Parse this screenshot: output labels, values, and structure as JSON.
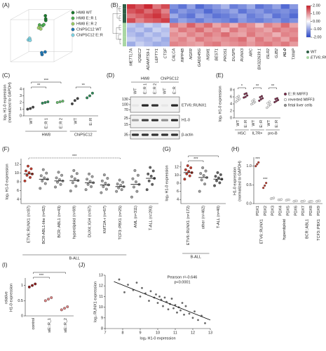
{
  "chart_data": [
    {
      "type": "scatter3d",
      "panel_label": "(A)",
      "xlim": [
        0,
        1
      ],
      "ylim": [
        0,
        1
      ],
      "zlim": [
        0,
        1
      ],
      "series": [
        {
          "name": "HW8 WT",
          "color": "#1b7a2e",
          "x": [
            0.55,
            0.6,
            0.58
          ],
          "y": [
            0.95,
            0.9,
            0.85
          ],
          "z": [
            0.6,
            0.5,
            0.55
          ]
        },
        {
          "name": "HW8 E::R 1",
          "color": "#4caf50",
          "x": [
            0.5,
            0.55,
            0.62
          ],
          "y": [
            0.78,
            0.75,
            0.8
          ],
          "z": [
            0.4,
            0.45,
            0.35
          ]
        },
        {
          "name": "HW8 E::R 2",
          "color": "#9ccc65",
          "x": [
            0.45,
            0.5,
            0.52
          ],
          "y": [
            0.7,
            0.72,
            0.68
          ],
          "z": [
            0.5,
            0.35,
            0.42
          ]
        },
        {
          "name": "ChiPSC12 WT",
          "color": "#1f77b4",
          "x": [
            0.6,
            0.65,
            0.55
          ],
          "y": [
            0.1,
            0.15,
            0.12
          ],
          "z": [
            0.3,
            0.35,
            0.4
          ]
        },
        {
          "name": "ChiPSC12 E::R",
          "color": "#7fd6e6",
          "x": [
            0.2,
            0.25,
            0.22
          ],
          "y": [
            0.4,
            0.45,
            0.38
          ],
          "z": [
            0.5,
            0.45,
            0.55
          ]
        }
      ]
    },
    {
      "type": "heatmap",
      "panel_label": "(B)",
      "columns": [
        "METTL7A",
        "IQSEC2",
        "ADAMTS9-1",
        "LEFTY1",
        "CTSF",
        "CALCA",
        "INPP4B",
        "NGFR",
        "GADD45G",
        "INSM1",
        "BEST1",
        "PROS1",
        "DUSP5",
        "RUNX3",
        "ARC",
        "BX322639.1",
        "ISLR2",
        "GJB2",
        "H1-0",
        "TXNIP"
      ],
      "zlim": [
        -2,
        2
      ],
      "zticks": [
        {
          "value": 2,
          "label": "2.00"
        },
        {
          "value": 1,
          "label": "1.00"
        },
        {
          "value": 0,
          "label": "0.00"
        },
        {
          "value": -1,
          "label": "-1.00"
        },
        {
          "value": -2,
          "label": "-2.00"
        }
      ],
      "groups": [
        {
          "name": "WT",
          "color": "#2f5f46",
          "values": [
            [
              1.8,
              1.5,
              1.9,
              1.2,
              1.6,
              -1.2,
              -1.5,
              -1.0,
              -1.6,
              -1.3,
              -1.1,
              -0.8,
              -1.4,
              -1.2,
              -0.9,
              -1.5,
              -1.3,
              -1.0,
              -1.6,
              -1.1
            ],
            [
              1.5,
              1.7,
              1.3,
              1.6,
              1.1,
              -1.4,
              -1.1,
              -1.3,
              -1.2,
              -1.6,
              -1.3,
              -1.2,
              -1.0,
              -1.5,
              -1.2,
              -1.1,
              -1.4,
              -1.3,
              -1.2,
              -1.4
            ],
            [
              1.2,
              1.4,
              1.6,
              1.8,
              1.4,
              -0.9,
              -1.3,
              -1.5,
              -1.0,
              -1.2,
              -1.5,
              -1.4,
              -1.2,
              -1.0,
              -1.4,
              -1.2,
              -1.0,
              -1.5,
              -1.3,
              -1.6
            ],
            [
              1.6,
              1.1,
              1.4,
              1.5,
              1.7,
              -1.3,
              -1.0,
              -1.2,
              -1.4,
              -1.1,
              -1.2,
              -1.3,
              -1.5,
              -1.1,
              -1.3,
              -1.4,
              -1.2,
              -1.1,
              -1.4,
              -1.2
            ]
          ]
        },
        {
          "name": "ETV6::RUNX1+",
          "color": "#a9d6a3",
          "values": [
            [
              -0.6,
              -0.8,
              -0.5,
              -0.7,
              -0.4,
              1.2,
              0.9,
              1.4,
              1.0,
              1.3,
              0.8,
              1.1,
              0.7,
              1.2,
              1.0,
              0.6,
              1.1,
              0.9,
              1.3,
              0.8
            ],
            [
              -0.8,
              -0.6,
              -0.9,
              -0.5,
              -0.7,
              0.8,
              1.2,
              1.0,
              1.3,
              0.9,
              1.1,
              0.7,
              1.2,
              0.9,
              1.1,
              1.0,
              0.8,
              1.2,
              1.0,
              1.1
            ],
            [
              -0.7,
              -0.9,
              -0.6,
              -0.8,
              -0.6,
              1.0,
              0.8,
              1.1,
              0.9,
              1.2,
              1.0,
              1.3,
              0.9,
              0.8,
              1.2,
              0.9,
              1.0,
              0.7,
              1.1,
              1.0
            ],
            [
              -0.5,
              -0.7,
              -0.8,
              -0.6,
              -0.9,
              0.9,
              1.1,
              0.8,
              1.2,
              1.0,
              0.9,
              1.0,
              1.1,
              1.3,
              0.8,
              1.2,
              0.9,
              1.1,
              0.8,
              1.2
            ],
            [
              -0.9,
              -0.5,
              -0.7,
              -0.9,
              -0.8,
              1.1,
              1.0,
              0.9,
              0.8,
              1.1,
              1.2,
              0.9,
              1.0,
              1.1,
              0.9,
              1.1,
              1.2,
              1.0,
              1.2,
              0.9
            ]
          ]
        }
      ]
    },
    {
      "type": "dot",
      "panel_label": "(C)",
      "ylabel": [
        "log₂ H1-0 expression",
        "(normalized to GAPDH)"
      ],
      "ylim": [
        0,
        4
      ],
      "yticks": [
        0,
        1,
        2,
        3,
        4
      ],
      "significance": [
        "***",
        "**",
        "**"
      ],
      "groups": [
        {
          "label": "HW8",
          "categories": [
            "WT",
            "E::R 1",
            "E::R 2"
          ],
          "colors": [
            "#444444",
            "#2e8b57",
            "#66bb6a"
          ],
          "values": [
            [
              1.0,
              1.1,
              1.3
            ],
            [
              1.9,
              2.0,
              2.1
            ],
            [
              2.0,
              2.1,
              2.2
            ]
          ]
        },
        {
          "label": "ChiPSC12",
          "categories": [
            "WT",
            "E::R"
          ],
          "colors": [
            "#444444",
            "#2e8b57"
          ],
          "values": [
            [
              1.8,
              2.3,
              2.6
            ],
            [
              2.7,
              3.0,
              3.4
            ]
          ]
        }
      ]
    },
    {
      "type": "dot",
      "panel_label": "(E)",
      "ylabel": "log₂ H1-0 expression",
      "ylim": [
        0,
        8
      ],
      "yticks": [
        0,
        2,
        4,
        6,
        8
      ],
      "significance": [
        "*",
        "**",
        "**"
      ],
      "legend": [
        {
          "name": "E::R MIFF3",
          "color": "#7b2a4a"
        },
        {
          "name": "reverted MIFF3",
          "color": "#ffffff"
        },
        {
          "name": "fetal liver cells",
          "color": "#999999"
        }
      ],
      "groups": [
        {
          "label": "HSC",
          "categories": [
            "WT",
            "E::R"
          ],
          "colors": [
            "#ffffff",
            "#7b2a4a"
          ],
          "values": [
            [
              4.6,
              5.0,
              5.4,
              5.8,
              6.2
            ],
            [
              5.8,
              6.0,
              6.4,
              6.8,
              7.0
            ]
          ]
        },
        {
          "label": "IL7R+",
          "categories": [
            "WT",
            "E::R"
          ],
          "colors": [
            "#ffffff",
            "#7b2a4a"
          ],
          "values": [
            [
              3.9,
              4.2,
              4.5,
              4.8,
              5.2
            ],
            [
              4.9,
              5.3,
              5.6,
              5.9,
              6.2
            ]
          ]
        },
        {
          "label": "pro-B",
          "categories": [
            "WT",
            "E::R"
          ],
          "colors": [
            "#ffffff",
            "#7b2a4a"
          ],
          "values": [
            [
              2.9,
              3.4,
              3.8,
              4.2,
              4.6
            ],
            [
              4.5,
              4.8,
              5.1,
              5.4,
              5.6
            ]
          ]
        }
      ]
    },
    {
      "type": "dot",
      "panel_label": "(F)",
      "ylabel": "log₂ H1-0 expression",
      "ylim": [
        3,
        13
      ],
      "yticks": [
        4,
        6,
        8,
        10,
        12
      ],
      "significance": [
        "***"
      ],
      "groups": [
        {
          "label": "B-ALL",
          "categories": [
            "ETV6::RUNX1 (n=87)",
            "BCR-ABL1-like (n=82)",
            "BCR::ABL1 (n=43)",
            "hyperdiploid (n=69)",
            "DUX4::IGH (n=67)",
            "KMT2A-r (n=67)",
            "TCF3::PBX1 (n=25)"
          ],
          "colors": [
            "#c0392b",
            "#9e9e9e",
            "#9e9e9e",
            "#9e9e9e",
            "#9e9e9e",
            "#9e9e9e",
            "#9e9e9e"
          ],
          "medians": [
            9.8,
            8.6,
            8.2,
            8.3,
            7.8,
            7.3,
            6.9
          ],
          "values": [
            [
              8.2,
              9.0,
              9.5,
              9.8,
              10.1,
              10.5,
              11.0,
              11.6
            ],
            [
              6.5,
              7.6,
              8.2,
              8.6,
              8.9,
              9.4,
              10.0,
              10.8
            ],
            [
              6.8,
              7.4,
              7.9,
              8.2,
              8.5,
              8.9,
              9.5,
              10.2
            ],
            [
              5.9,
              7.0,
              7.8,
              8.3,
              8.7,
              9.2,
              9.9,
              10.6
            ],
            [
              6.2,
              6.9,
              7.4,
              7.8,
              8.1,
              8.6,
              9.2,
              9.8
            ],
            [
              5.5,
              6.3,
              6.9,
              7.3,
              7.7,
              8.2,
              8.8,
              9.6
            ],
            [
              5.8,
              6.2,
              6.6,
              6.9,
              7.2,
              7.5,
              7.9,
              8.4
            ]
          ]
        },
        {
          "categories": [
            "AML (n=311)",
            "T-ALL (n=293)"
          ],
          "colors": [
            "#9e9e9e",
            "#616161"
          ],
          "medians": [
            7.4,
            8.8
          ],
          "values": [
            [
              4.5,
              5.8,
              6.8,
              7.4,
              8.0,
              8.7,
              9.5,
              10.6
            ],
            [
              6.2,
              7.4,
              8.2,
              8.8,
              9.3,
              9.8,
              10.5,
              11.3
            ]
          ]
        }
      ]
    },
    {
      "type": "dot",
      "panel_label": "(G)",
      "ylabel": "log₂ H1-0 expression",
      "ylim": [
        3,
        13
      ],
      "yticks": [
        4,
        6,
        8,
        10,
        12
      ],
      "significance": [
        "***"
      ],
      "groups": [
        {
          "label": "B-ALL",
          "categories": [
            "ETV6::RUNX1 (n=172)",
            "other (n=462)"
          ],
          "colors": [
            "#c0392b",
            "#9e9e9e"
          ],
          "medians": [
            10.6,
            9.4
          ],
          "values": [
            [
              9.0,
              9.8,
              10.3,
              10.6,
              10.9,
              11.3,
              11.8,
              12.3
            ],
            [
              6.0,
              7.8,
              8.8,
              9.4,
              9.9,
              10.4,
              11.0,
              11.8
            ]
          ]
        },
        {
          "categories": [
            "T-ALL (n=40)"
          ],
          "colors": [
            "#616161"
          ],
          "medians": [
            9.0
          ],
          "values": [
            [
              7.4,
              8.1,
              8.6,
              9.0,
              9.3,
              9.7,
              10.1,
              10.6
            ]
          ]
        }
      ]
    },
    {
      "type": "dot",
      "panel_label": "(H)",
      "ylabel": [
        "H1-0 expression",
        "(normalized to GAPDH)"
      ],
      "ylim": [
        0,
        1.2
      ],
      "yticks": [
        {
          "value": 0,
          "label": "0.0"
        },
        {
          "value": 0.5,
          "label": "0.5"
        },
        {
          "value": 1,
          "label": "1.0"
        }
      ],
      "significance": [
        "***",
        "***"
      ],
      "groups": [
        {
          "label": "ETV6::RUNX1",
          "categories": [
            "PDX1",
            "PDX2"
          ],
          "colors": [
            "#c0392b",
            "#c0392b"
          ],
          "values": [
            [
              1.0,
              1.05,
              1.1
            ],
            [
              0.42,
              0.48,
              0.55
            ]
          ]
        },
        {
          "label": "hyperdiploid",
          "categories": [
            "PDX3",
            "PDX4",
            "PDX5",
            "PDX6"
          ],
          "colors": [
            "#ffffff",
            "#ffffff",
            "#ffffff",
            "#ffffff"
          ],
          "values": [
            [
              0.13,
              0.14,
              0.15
            ],
            [
              0.1,
              0.1,
              0.11
            ],
            [
              0.09,
              0.1,
              0.1
            ],
            [
              0.06,
              0.07,
              0.07
            ]
          ]
        },
        {
          "label": "BCR::ABL1",
          "categories": [
            "PDX7",
            "PDX8"
          ],
          "colors": [
            "#ffffff",
            "#ffffff"
          ],
          "values": [
            [
              0.06,
              0.06,
              0.07
            ],
            [
              0.05,
              0.06,
              0.06
            ]
          ]
        },
        {
          "label": "TCF3::PBX1",
          "categories": [
            "PDX9"
          ],
          "colors": [
            "#ffffff"
          ],
          "values": [
            [
              0.06,
              0.07,
              0.07
            ]
          ]
        }
      ]
    },
    {
      "type": "dot",
      "panel_label": "(I)",
      "ylabel": [
        "relative",
        "H1-0 expression"
      ],
      "ylim": [
        0,
        1.2
      ],
      "yticks": [
        0,
        0.5,
        1
      ],
      "significance": [
        "***"
      ],
      "groups": [
        {
          "categories": [
            "control",
            "siE::R_1",
            "siE::R_2"
          ],
          "colors": [
            "#8b1a1a",
            "#d98080",
            "#d98080"
          ],
          "values": [
            [
              0.95,
              1.0,
              1.05
            ],
            [
              0.5,
              0.55,
              0.6
            ],
            [
              0.2,
              0.25,
              0.3
            ]
          ]
        }
      ]
    },
    {
      "type": "scatter",
      "panel_label": "(J)",
      "xlabel": "log₂ H1-0 expression",
      "ylabel": "log₂ RUNX1 expression",
      "xlim": [
        7,
        13
      ],
      "xticks": [
        7,
        8,
        9,
        10,
        11,
        12,
        13
      ],
      "ylim": [
        8,
        13
      ],
      "yticks": [
        8,
        9,
        10,
        11,
        12,
        13
      ],
      "annotations": [
        "Pearson r=-0.646",
        "p<0.0001"
      ],
      "x": [
        7.8,
        8.1,
        8.3,
        8.6,
        8.8,
        9.0,
        9.1,
        9.3,
        9.5,
        9.6,
        9.8,
        9.9,
        10.0,
        10.1,
        10.2,
        10.3,
        10.4,
        10.5,
        10.6,
        10.7,
        10.8,
        10.9,
        11.0,
        11.1,
        11.2,
        11.3,
        11.5,
        11.6,
        11.8,
        12.0,
        12.1,
        12.3,
        12.5,
        12.7,
        11.4
      ],
      "y": [
        12.6,
        11.4,
        12.1,
        11.6,
        12.3,
        11.0,
        11.8,
        11.3,
        10.6,
        11.5,
        10.9,
        11.2,
        10.4,
        11.0,
        10.7,
        10.1,
        10.9,
        10.5,
        9.8,
        10.3,
        10.8,
        9.9,
        10.2,
        9.5,
        10.0,
        9.7,
        9.3,
        10.1,
        9.4,
        9.0,
        9.6,
        8.8,
        9.2,
        8.5,
        10.4
      ],
      "fit": {
        "x": [
          7.5,
          13
        ],
        "y": [
          12.4,
          8.8
        ]
      }
    }
  ],
  "blot": {
    "panel_label": "(D)",
    "cell_lines": [
      {
        "name": "HW8",
        "lanes": [
          "WT",
          "E::R 1",
          "E::R 2"
        ]
      },
      {
        "name": "ChiPSC12",
        "lanes": [
          "WT",
          "E::R"
        ]
      }
    ],
    "panels": [
      {
        "markers": [
          "130",
          "100",
          "70"
        ],
        "label": "ETV6::RUNX1"
      },
      {
        "markers": [
          "25",
          "15"
        ],
        "label": "H1-0"
      },
      {
        "markers": [
          "35"
        ],
        "label": "β-actin"
      }
    ]
  }
}
